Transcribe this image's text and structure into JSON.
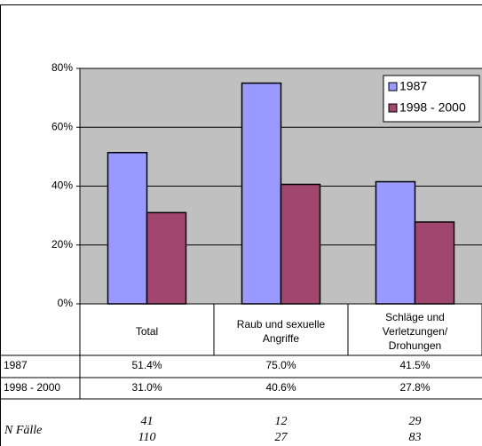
{
  "chart_data": {
    "type": "bar",
    "categories": [
      "Total",
      "Raub und sexuelle Angriffe",
      "Schläge und Verletzungen/ Drohungen"
    ],
    "series": [
      {
        "name": "1987",
        "color": "#9999ff",
        "values": [
          51.4,
          75.0,
          41.5
        ],
        "value_labels": [
          "51.4%",
          "75.0%",
          "41.5%"
        ]
      },
      {
        "name": "1998 - 2000",
        "color": "#a0466f",
        "values": [
          31.0,
          40.6,
          27.8
        ],
        "value_labels": [
          "31.0%",
          "40.6%",
          "27.8%"
        ]
      }
    ],
    "ylim": [
      0,
      80
    ],
    "yticks": [
      {
        "value": 0,
        "label": "0%"
      },
      {
        "value": 20,
        "label": "20%"
      },
      {
        "value": 40,
        "label": "40%"
      },
      {
        "value": 60,
        "label": "60%"
      },
      {
        "value": 80,
        "label": "80%"
      }
    ],
    "legend": "top-right",
    "n_cases": {
      "label": "N Fälle",
      "values": [
        [
          41,
          110
        ],
        [
          12,
          27
        ],
        [
          29,
          83
        ]
      ]
    }
  }
}
